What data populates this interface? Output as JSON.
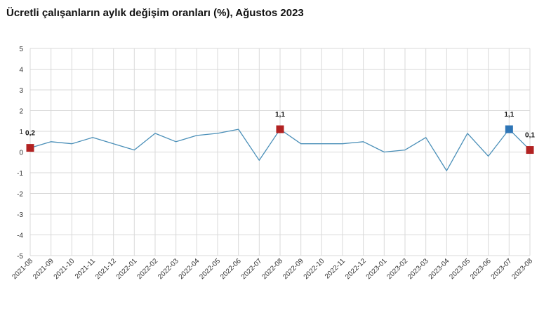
{
  "title": "Ücretli çalışanların aylık değişim oranları (%), Ağustos 2023",
  "colors": {
    "line": "#4a8fb8",
    "marker_red": "#b22222",
    "marker_blue": "#2e75b6",
    "grid": "#d9d9d9"
  },
  "chart_data": {
    "type": "line",
    "title": "Ücretli çalışanların aylık değişim oranları (%), Ağustos 2023",
    "xlabel": "",
    "ylabel": "",
    "ylim": [
      -5,
      5
    ],
    "yticks": [
      5,
      4,
      3,
      2,
      1,
      0,
      -1,
      -2,
      -3,
      -4,
      -5
    ],
    "grid": true,
    "legend": "none",
    "categories": [
      "2021-08",
      "2021-09",
      "2021-10",
      "2021-11",
      "2021-12",
      "2022-01",
      "2022-02",
      "2022-03",
      "2022-04",
      "2022-05",
      "2022-06",
      "2022-07",
      "2022-08",
      "2022-09",
      "2022-10",
      "2022-11",
      "2022-12",
      "2023-01",
      "2023-02",
      "2023-03",
      "2023-04",
      "2023-05",
      "2023-06",
      "2023-07",
      "2023-08"
    ],
    "values": [
      0.2,
      0.5,
      0.4,
      0.7,
      0.4,
      0.1,
      0.9,
      0.5,
      0.8,
      0.9,
      1.1,
      -0.4,
      1.1,
      0.4,
      0.4,
      0.4,
      0.5,
      0.0,
      0.1,
      0.7,
      -0.9,
      0.9,
      -0.2,
      1.1,
      0.1
    ],
    "highlights": [
      {
        "index": 0,
        "label": "0,2",
        "color": "#b22222"
      },
      {
        "index": 12,
        "label": "1,1",
        "color": "#b22222"
      },
      {
        "index": 23,
        "label": "1,1",
        "color": "#2e75b6"
      },
      {
        "index": 24,
        "label": "0,1",
        "color": "#b22222"
      }
    ]
  }
}
